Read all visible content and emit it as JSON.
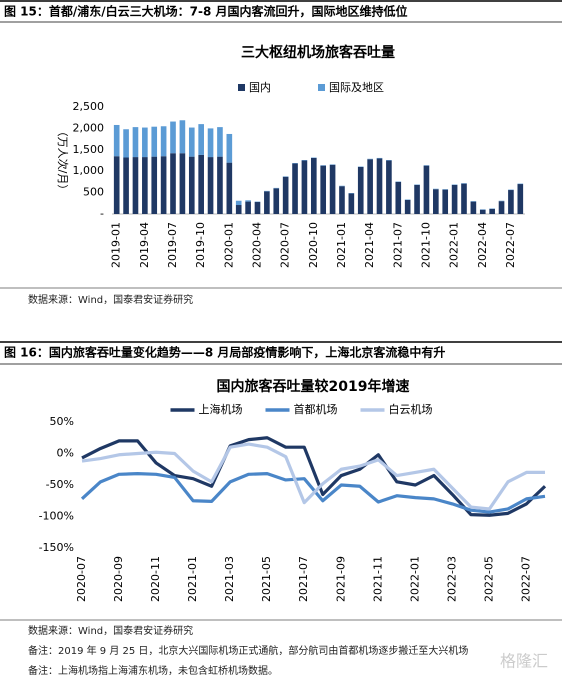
{
  "figures": [
    {
      "heading": "图 15：首都/浦东/白云三大机场：7-8 月国内客流回升，国际地区维持低位",
      "source": "数据来源：Wind，国泰君安证券研究"
    },
    {
      "heading": "图 16：国内旅客吞吐量变化趋势——8 月局部疫情影响下，上海北京客流稳中有升",
      "source": "数据来源：Wind，国泰君安证券研究",
      "notes": [
        "备注：2019 年 9 月 25 日，北京大兴国际机场正式通航，部分航司由首都机场逐步搬迁至大兴机场",
        "备注：上海机场指上海浦东机场，未包含虹桥机场数据。"
      ]
    }
  ],
  "watermark": "格隆汇",
  "chart_data": [
    {
      "type": "bar",
      "stacked": true,
      "title": "三大枢纽机场旅客吞吐量",
      "y_label": "（万人次/月）",
      "legend": "top",
      "categories": [
        "2019-01",
        null,
        null,
        "2019-04",
        null,
        null,
        "2019-07",
        null,
        null,
        "2019-10",
        null,
        null,
        "2020-01",
        null,
        null,
        "2020-04",
        null,
        null,
        "2020-07",
        null,
        null,
        "2020-10",
        null,
        null,
        "2021-01",
        null,
        null,
        "2021-04",
        null,
        null,
        "2021-07",
        null,
        null,
        "2021-10",
        null,
        null,
        "2022-01",
        null,
        null,
        "2022-04",
        null,
        null,
        "2022-07",
        null
      ],
      "series": [
        {
          "name": "国内",
          "color": "#1f3864",
          "values": [
            1350,
            1320,
            1330,
            1330,
            1340,
            1350,
            1420,
            1420,
            1340,
            1380,
            1330,
            1340,
            1200,
            210,
            290,
            280,
            530,
            600,
            870,
            1180,
            1250,
            1310,
            1130,
            1150,
            650,
            480,
            1100,
            1280,
            1300,
            1250,
            750,
            330,
            680,
            1130,
            580,
            570,
            680,
            710,
            290,
            100,
            120,
            300,
            560,
            700
          ]
        },
        {
          "name": "国际及地区",
          "color": "#5b9bd5",
          "values": [
            730,
            660,
            700,
            690,
            700,
            700,
            740,
            770,
            680,
            720,
            670,
            690,
            670,
            100,
            30,
            10,
            10,
            10,
            10,
            10,
            10,
            10,
            10,
            10,
            10,
            10,
            10,
            10,
            10,
            10,
            10,
            10,
            10,
            10,
            10,
            10,
            10,
            10,
            10,
            10,
            10,
            10,
            10,
            10
          ]
        }
      ],
      "ylim": [
        0,
        2500
      ],
      "yticks": [
        {
          "value": 0,
          "label": "-"
        },
        500,
        {
          "value": 1000,
          "label": "1,000"
        },
        {
          "value": 1500,
          "label": "1,500"
        },
        {
          "value": 2000,
          "label": "2,000"
        },
        {
          "value": 2500,
          "label": "2,500"
        }
      ]
    },
    {
      "type": "line",
      "title": "国内旅客吞吐量较2019年增速",
      "legend": "top",
      "categories": [
        "2020-07",
        null,
        "2020-09",
        null,
        "2020-11",
        null,
        "2021-01",
        null,
        "2021-03",
        null,
        "2021-05",
        null,
        "2021-07",
        null,
        "2021-09",
        null,
        "2021-11",
        null,
        "2022-01",
        null,
        "2022-03",
        null,
        "2022-05",
        null,
        "2022-07",
        null
      ],
      "series": [
        {
          "name": "上海机场",
          "color": "#1f3864",
          "values": [
            -7,
            8,
            20,
            20,
            -15,
            -35,
            -40,
            -52,
            12,
            22,
            25,
            10,
            10,
            -65,
            -35,
            -25,
            -2,
            -45,
            -50,
            -35,
            -65,
            -97,
            -98,
            -95,
            -80,
            -52
          ]
        },
        {
          "name": "首都机场",
          "color": "#4a86c8",
          "values": [
            -72,
            -45,
            -33,
            -32,
            -33,
            -38,
            -75,
            -76,
            -45,
            -33,
            -32,
            -42,
            -40,
            -75,
            -50,
            -52,
            -77,
            -67,
            -70,
            -72,
            -80,
            -90,
            -93,
            -88,
            -72,
            -68
          ]
        },
        {
          "name": "白云机场",
          "color": "#b4c7e7",
          "values": [
            -12,
            -8,
            -2,
            0,
            2,
            0,
            -28,
            -45,
            10,
            15,
            10,
            -5,
            -78,
            -48,
            -25,
            -20,
            -10,
            -35,
            -30,
            -25,
            -55,
            -85,
            -88,
            -45,
            -30,
            -30
          ]
        }
      ],
      "ylim": [
        -150,
        50
      ],
      "yticks": [
        {
          "value": -150,
          "label": "-150%"
        },
        {
          "value": -100,
          "label": "-100%"
        },
        {
          "value": -50,
          "label": "-50%"
        },
        {
          "value": 0,
          "label": "0%"
        },
        {
          "value": 50,
          "label": "50%"
        }
      ]
    }
  ]
}
